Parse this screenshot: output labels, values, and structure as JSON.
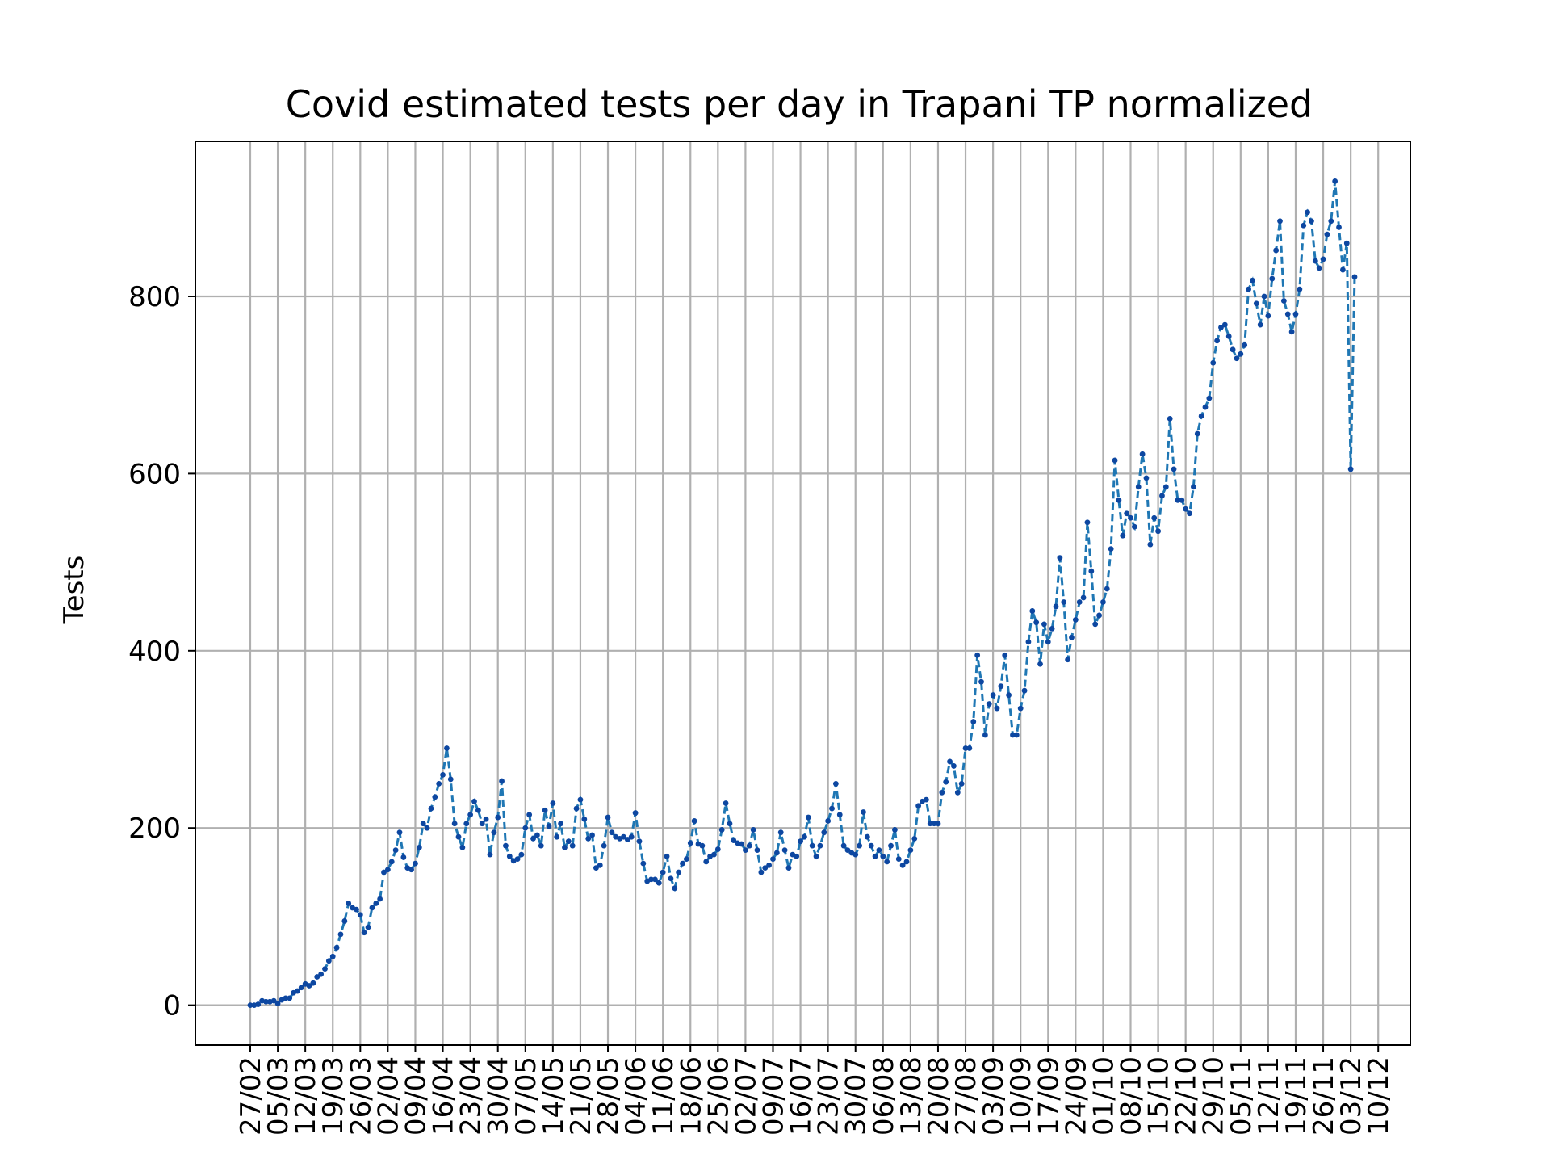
{
  "chart_data": {
    "type": "line",
    "title": "Covid estimated tests per day in Trapani TP normalized",
    "xlabel": "",
    "ylabel": "Tests",
    "ylim": [
      -45,
      975
    ],
    "yticks": [
      0,
      200,
      400,
      600,
      800
    ],
    "grid": true,
    "line_color": "#1f77b4",
    "marker_color": "#0d47a1",
    "line_style": "dashed",
    "x_tick_labels": [
      "27/02",
      "05/03",
      "12/03",
      "19/03",
      "26/03",
      "02/04",
      "09/04",
      "16/04",
      "23/04",
      "30/04",
      "07/05",
      "14/05",
      "21/05",
      "28/05",
      "04/06",
      "11/06",
      "18/06",
      "25/06",
      "02/07",
      "09/07",
      "16/07",
      "23/07",
      "30/07",
      "06/08",
      "13/08",
      "20/08",
      "27/08",
      "03/09",
      "10/09",
      "17/09",
      "24/09",
      "01/10",
      "08/10",
      "15/10",
      "22/10",
      "29/10",
      "05/11",
      "12/11",
      "19/11",
      "26/11",
      "03/12",
      "10/12"
    ],
    "series": [
      {
        "name": "",
        "start_date": "27/02",
        "step_days": 1,
        "values": [
          0,
          0,
          1,
          5,
          4,
          4,
          5,
          2,
          6,
          8,
          8,
          14,
          16,
          20,
          24,
          22,
          25,
          32,
          35,
          41,
          50,
          55,
          65,
          80,
          95,
          115,
          110,
          108,
          102,
          82,
          88,
          110,
          115,
          120,
          150,
          153,
          162,
          175,
          195,
          167,
          155,
          153,
          160,
          178,
          205,
          200,
          222,
          235,
          250,
          260,
          290,
          255,
          205,
          190,
          178,
          205,
          215,
          230,
          220,
          205,
          210,
          170,
          195,
          212,
          253,
          180,
          168,
          163,
          165,
          170,
          200,
          215,
          188,
          192,
          180,
          220,
          202,
          228,
          190,
          205,
          178,
          185,
          180,
          222,
          232,
          210,
          188,
          192,
          155,
          158,
          180,
          212,
          195,
          190,
          188,
          190,
          187,
          190,
          217,
          185,
          160,
          140,
          142,
          142,
          138,
          150,
          168,
          143,
          132,
          150,
          160,
          165,
          183,
          208,
          182,
          180,
          162,
          168,
          170,
          176,
          198,
          228,
          205,
          186,
          183,
          182,
          175,
          180,
          198,
          175,
          150,
          155,
          158,
          165,
          172,
          195,
          175,
          155,
          170,
          168,
          185,
          190,
          212,
          180,
          168,
          180,
          195,
          208,
          222,
          250,
          215,
          180,
          175,
          172,
          170,
          180,
          218,
          190,
          180,
          168,
          175,
          168,
          162,
          180,
          198,
          165,
          158,
          162,
          175,
          188,
          225,
          230,
          232,
          205,
          205,
          205,
          240,
          252,
          275,
          270,
          240,
          250,
          290,
          290,
          320,
          395,
          365,
          305,
          340,
          350,
          335,
          360,
          395,
          350,
          305,
          305,
          335,
          355,
          410,
          445,
          432,
          385,
          430,
          410,
          425,
          450,
          505,
          455,
          390,
          415,
          435,
          455,
          460,
          545,
          490,
          430,
          440,
          455,
          470,
          515,
          615,
          570,
          530,
          555,
          550,
          540,
          585,
          622,
          595,
          520,
          550,
          535,
          575,
          585,
          662,
          605,
          570,
          570,
          560,
          555,
          585,
          645,
          665,
          675,
          685,
          725,
          750,
          765,
          768,
          755,
          740,
          730,
          735,
          745,
          808,
          818,
          792,
          768,
          800,
          778,
          820,
          852,
          885,
          795,
          780,
          760,
          780,
          808,
          880,
          895,
          885,
          840,
          832,
          842,
          870,
          885,
          930,
          878,
          830,
          860,
          605,
          822
        ]
      }
    ]
  }
}
